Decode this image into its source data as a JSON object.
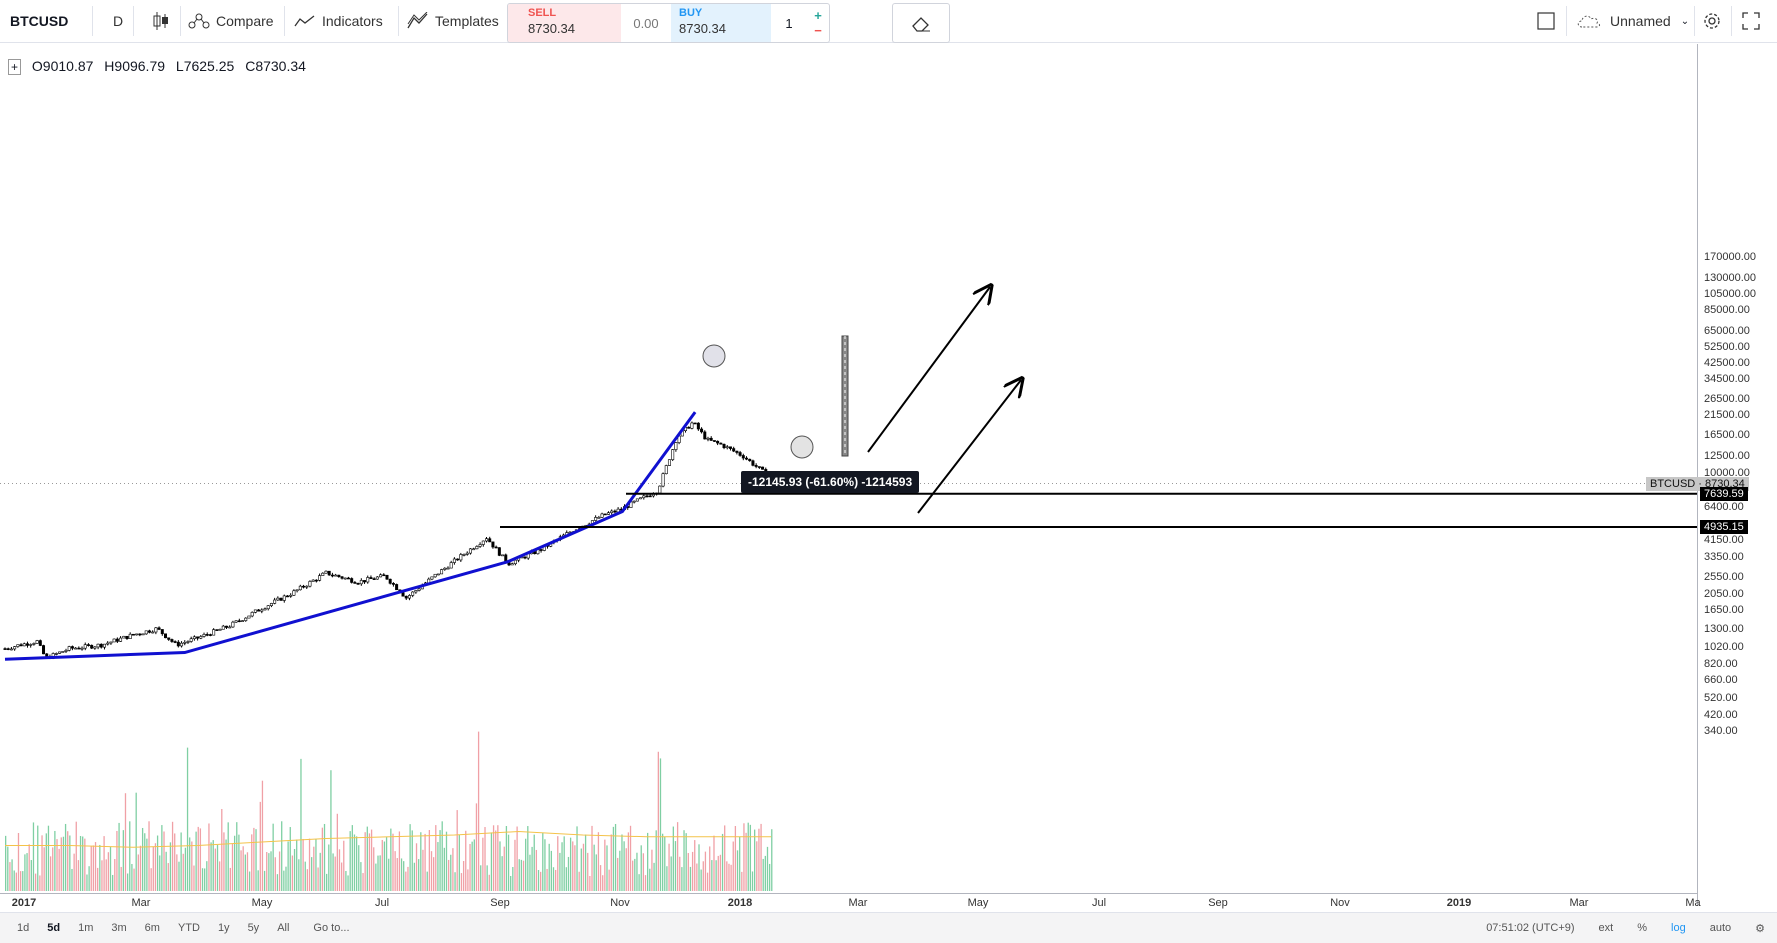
{
  "toolbar": {
    "symbol": "BTCUSD",
    "interval": "D",
    "compare_label": "Compare",
    "indicators_label": "Indicators",
    "templates_label": "Templates",
    "layout_name": "Unnamed"
  },
  "trade": {
    "sell_label": "SELL",
    "sell_price": "8730.34",
    "spread": "0.00",
    "buy_label": "BUY",
    "buy_price": "8730.34",
    "quantity": "1",
    "plus": "+",
    "minus": "−"
  },
  "legend": {
    "open": "O9010.87",
    "high": "H9096.79",
    "low": "L7625.25",
    "close": "C8730.34"
  },
  "price_axis": {
    "labels": [
      "170000.00",
      "130000.00",
      "105000.00",
      "85000.00",
      "65000.00",
      "52500.00",
      "42500.00",
      "34500.00",
      "26500.00",
      "21500.00",
      "16500.00",
      "12500.00",
      "10000.00",
      "6400.00",
      "4150.00",
      "3350.00",
      "2550.00",
      "2050.00",
      "1650.00",
      "1300.00",
      "1020.00",
      "820.00",
      "660.00",
      "520.00",
      "420.00",
      "340.00"
    ],
    "last_price_tag": "BTCUSD",
    "last_price": "8730.34",
    "line1_price": "7639.59",
    "line2_price": "4935.15"
  },
  "time_axis": {
    "labels": [
      "2017",
      "Mar",
      "May",
      "Jul",
      "Sep",
      "Nov",
      "2018",
      "Mar",
      "May",
      "Jul",
      "Sep",
      "Nov",
      "2019",
      "Mar",
      "Ma"
    ]
  },
  "measure_label": "-12145.93 (-61.60%) -1214593",
  "bottom_bar": {
    "ranges": [
      "1d",
      "5d",
      "1m",
      "3m",
      "6m",
      "YTD",
      "1y",
      "5y",
      "All"
    ],
    "active_range": "5d",
    "goto_label": "Go to...",
    "clock": "07:51:02 (UTC+9)",
    "ext": "ext",
    "percent": "%",
    "log": "log",
    "auto": "auto"
  },
  "colors": {
    "trendline": "#1010d0",
    "volume_up": "#7fcfa3",
    "volume_down": "#f0a0a6",
    "volume_ma": "#f4c34a",
    "log_active": "#2196f3"
  },
  "chart_data": {
    "type": "candlestick",
    "series": [
      {
        "name": "BTCUSD",
        "values": [
          [
            0,
            1000
          ],
          [
            14,
            1050
          ],
          [
            30,
            1100
          ],
          [
            38,
            880
          ],
          [
            60,
            1000
          ],
          [
            90,
            1050
          ],
          [
            120,
            1200
          ],
          [
            142,
            1300
          ],
          [
            160,
            1050
          ],
          [
            180,
            1150
          ],
          [
            210,
            1350
          ],
          [
            240,
            1700
          ],
          [
            270,
            2100
          ],
          [
            300,
            2700
          ],
          [
            330,
            2400
          ],
          [
            355,
            2600
          ],
          [
            375,
            1950
          ],
          [
            405,
            2700
          ],
          [
            430,
            3500
          ],
          [
            450,
            4300
          ],
          [
            470,
            3050
          ],
          [
            500,
            3650
          ],
          [
            530,
            4700
          ],
          [
            560,
            5800
          ],
          [
            575,
            6200
          ],
          [
            610,
            8000
          ],
          [
            628,
            16000
          ],
          [
            643,
            19500
          ],
          [
            656,
            15500
          ],
          [
            670,
            14500
          ],
          [
            690,
            12500
          ],
          [
            710,
            10000
          ],
          [
            716,
            8730.34
          ]
        ]
      }
    ],
    "volume_ma": [
      [
        0,
        430
      ],
      [
        60,
        430
      ],
      [
        120,
        425
      ],
      [
        180,
        430
      ],
      [
        240,
        440
      ],
      [
        300,
        450
      ],
      [
        360,
        455
      ],
      [
        420,
        460
      ],
      [
        480,
        470
      ],
      [
        540,
        460
      ],
      [
        600,
        455
      ],
      [
        660,
        455
      ],
      [
        716,
        455
      ]
    ],
    "trendlines": [
      {
        "from": [
          0,
          870
        ],
        "to": [
          168,
          950
        ]
      },
      {
        "from": [
          168,
          950
        ],
        "to": [
          470,
          3130
        ]
      },
      {
        "from": [
          470,
          3130
        ],
        "to": [
          577,
          6050
        ]
      },
      {
        "from": [
          577,
          6050
        ],
        "to": [
          645,
          22300
        ]
      }
    ],
    "horizontal_lines": [
      7639.59,
      4935.15
    ],
    "price_scale": "log"
  }
}
